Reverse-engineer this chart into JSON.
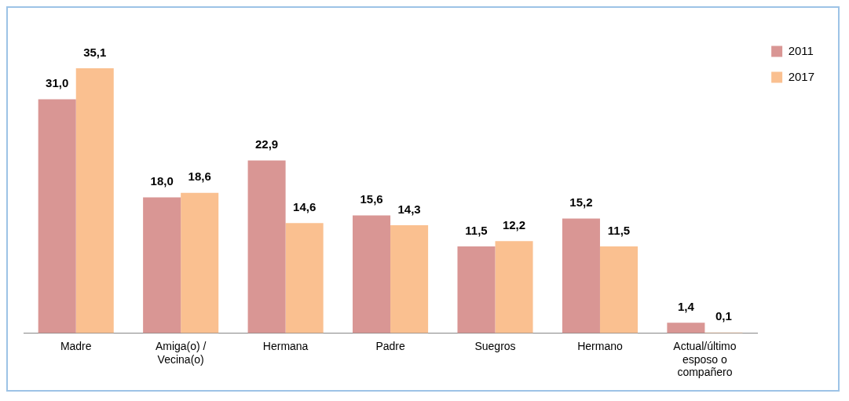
{
  "chart_data": {
    "type": "bar",
    "categories": [
      "Madre",
      "Amiga(o) / Vecina(o)",
      "Hermana",
      "Padre",
      "Suegros",
      "Hermano",
      "Actual/último esposo o compañero"
    ],
    "series": [
      {
        "name": "2011",
        "color": "#d99694",
        "values": [
          31.0,
          18.0,
          22.9,
          15.6,
          11.5,
          15.2,
          1.4
        ],
        "value_labels": [
          "31,0",
          "18,0",
          "22,9",
          "15,6",
          "11,5",
          "15,2",
          "1,4"
        ]
      },
      {
        "name": "2017",
        "color": "#fac090",
        "values": [
          35.1,
          18.6,
          14.6,
          14.3,
          12.2,
          11.5,
          0.1
        ],
        "value_labels": [
          "35,1",
          "18,6",
          "14,6",
          "14,3",
          "12,2",
          "11,5",
          "0,1"
        ]
      }
    ],
    "legend": "top right",
    "grid": false
  }
}
